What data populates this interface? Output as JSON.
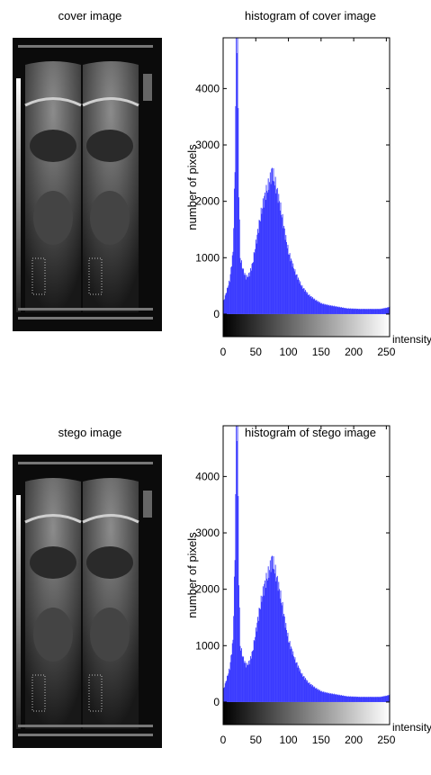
{
  "panels": [
    {
      "image_title": "cover image",
      "histogram_title": "histogram of cover image"
    },
    {
      "image_title": "stego image",
      "histogram_title": "histogram of stego image"
    }
  ],
  "chart_data": [
    {
      "type": "bar",
      "title": "histogram of cover image",
      "xlabel": "intensity",
      "ylabel": "number of pixels",
      "xlim": [
        0,
        255
      ],
      "ylim": [
        -400,
        4900
      ],
      "xticks": [
        0,
        50,
        100,
        150,
        200,
        250
      ],
      "yticks": [
        0,
        1000,
        2000,
        3000,
        4000
      ],
      "colorbar": "grayscale gradient 0-255 below the bars",
      "bar_color": "#3a3aff",
      "series": [
        {
          "x": [
            0,
            5,
            10,
            15,
            18,
            20,
            22,
            24,
            26,
            30,
            35,
            40,
            45,
            50,
            55,
            60,
            65,
            70,
            75,
            80,
            85,
            90,
            95,
            100,
            110,
            120,
            130,
            140,
            150,
            160,
            170,
            180,
            190,
            200,
            210,
            220,
            230,
            240,
            250,
            255
          ],
          "values": [
            200,
            400,
            600,
            1100,
            2600,
            4900,
            4900,
            2200,
            1000,
            800,
            650,
            700,
            900,
            1250,
            1600,
            1900,
            2150,
            2300,
            2550,
            2300,
            2050,
            1750,
            1400,
            1100,
            750,
            500,
            350,
            260,
            190,
            160,
            140,
            120,
            100,
            95,
            90,
            90,
            90,
            90,
            110,
            130
          ]
        }
      ]
    },
    {
      "type": "bar",
      "title": "histogram of stego image",
      "xlabel": "intensity",
      "ylabel": "number of pixels",
      "xlim": [
        0,
        255
      ],
      "ylim": [
        -400,
        4900
      ],
      "xticks": [
        0,
        50,
        100,
        150,
        200,
        250
      ],
      "yticks": [
        0,
        1000,
        2000,
        3000,
        4000
      ],
      "colorbar": "grayscale gradient 0-255 below the bars",
      "bar_color": "#3a3aff",
      "series": [
        {
          "x": [
            0,
            5,
            10,
            15,
            18,
            20,
            22,
            24,
            26,
            30,
            35,
            40,
            45,
            50,
            55,
            60,
            65,
            70,
            75,
            80,
            85,
            90,
            95,
            100,
            110,
            120,
            130,
            140,
            150,
            160,
            170,
            180,
            190,
            200,
            210,
            220,
            230,
            240,
            250,
            255
          ],
          "values": [
            200,
            400,
            600,
            1100,
            2600,
            4900,
            4900,
            2200,
            1000,
            800,
            650,
            700,
            900,
            1250,
            1600,
            1900,
            2150,
            2300,
            2550,
            2300,
            2050,
            1750,
            1400,
            1100,
            750,
            500,
            350,
            260,
            190,
            160,
            140,
            120,
            100,
            95,
            90,
            90,
            90,
            90,
            110,
            130
          ]
        }
      ]
    }
  ]
}
